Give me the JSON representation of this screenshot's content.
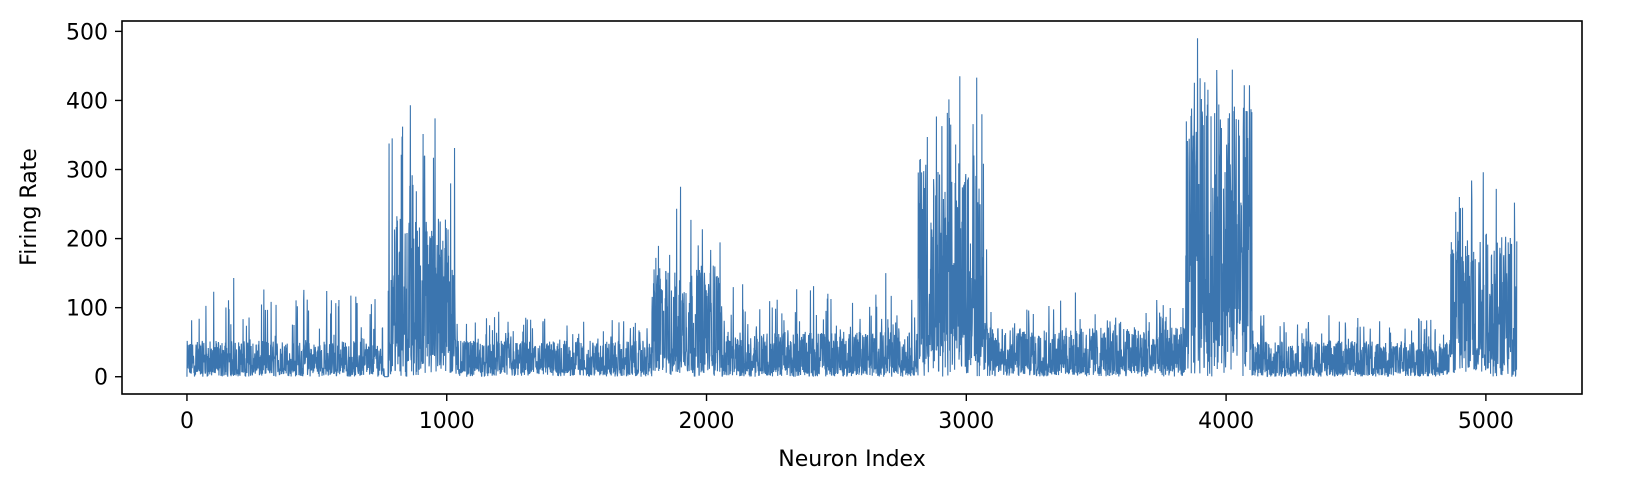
{
  "chart_data": {
    "type": "line",
    "title": "",
    "xlabel": "Neuron Index",
    "ylabel": "Firing Rate",
    "xlim": [
      -250,
      5370
    ],
    "ylim": [
      -25,
      515
    ],
    "xticks": [
      0,
      1000,
      2000,
      3000,
      4000,
      5000
    ],
    "yticks": [
      0,
      100,
      200,
      300,
      400,
      500
    ],
    "grid": false,
    "legend": "none",
    "n_points": 5120,
    "line_color": "#3b75af",
    "segments": [
      {
        "x": [
          0,
          760
        ],
        "baseline": 40,
        "peak_max": 145,
        "note": "low activity"
      },
      {
        "x": [
          775,
          1035
        ],
        "baseline": 180,
        "peak_max": 393
      },
      {
        "x": [
          1035,
          1790
        ],
        "baseline": 40,
        "peak_max": 95
      },
      {
        "x": [
          1790,
          2060
        ],
        "baseline": 120,
        "peak_max": 275
      },
      {
        "x": [
          2060,
          2815
        ],
        "baseline": 50,
        "peak_max": 150
      },
      {
        "x": [
          2815,
          3080
        ],
        "baseline": 230,
        "peak_max": 435
      },
      {
        "x": [
          3080,
          3845
        ],
        "baseline": 55,
        "peak_max": 122
      },
      {
        "x": [
          3845,
          4100
        ],
        "baseline": 300,
        "peak_max": 490
      },
      {
        "x": [
          4100,
          4860
        ],
        "baseline": 40,
        "peak_max": 98
      },
      {
        "x": [
          4860,
          5120
        ],
        "baseline": 160,
        "peak_max": 296
      }
    ],
    "highlight_peaks": [
      {
        "x": 790,
        "y": 345
      },
      {
        "x": 830,
        "y": 362
      },
      {
        "x": 860,
        "y": 393
      },
      {
        "x": 915,
        "y": 320
      },
      {
        "x": 955,
        "y": 374
      },
      {
        "x": 1015,
        "y": 280
      },
      {
        "x": 1805,
        "y": 172
      },
      {
        "x": 1900,
        "y": 275
      },
      {
        "x": 1940,
        "y": 227
      },
      {
        "x": 2690,
        "y": 150
      },
      {
        "x": 2850,
        "y": 347
      },
      {
        "x": 2940,
        "y": 365
      },
      {
        "x": 2975,
        "y": 435
      },
      {
        "x": 3040,
        "y": 433
      },
      {
        "x": 3060,
        "y": 380
      },
      {
        "x": 3890,
        "y": 490
      },
      {
        "x": 3905,
        "y": 402
      },
      {
        "x": 4070,
        "y": 422
      },
      {
        "x": 4090,
        "y": 422
      },
      {
        "x": 4945,
        "y": 284
      },
      {
        "x": 4990,
        "y": 296
      },
      {
        "x": 5040,
        "y": 272
      },
      {
        "x": 5110,
        "y": 252
      },
      {
        "x": 180,
        "y": 143
      },
      {
        "x": 585,
        "y": 111
      },
      {
        "x": 425,
        "y": 102
      },
      {
        "x": 1200,
        "y": 94
      },
      {
        "x": 3420,
        "y": 122
      }
    ]
  }
}
